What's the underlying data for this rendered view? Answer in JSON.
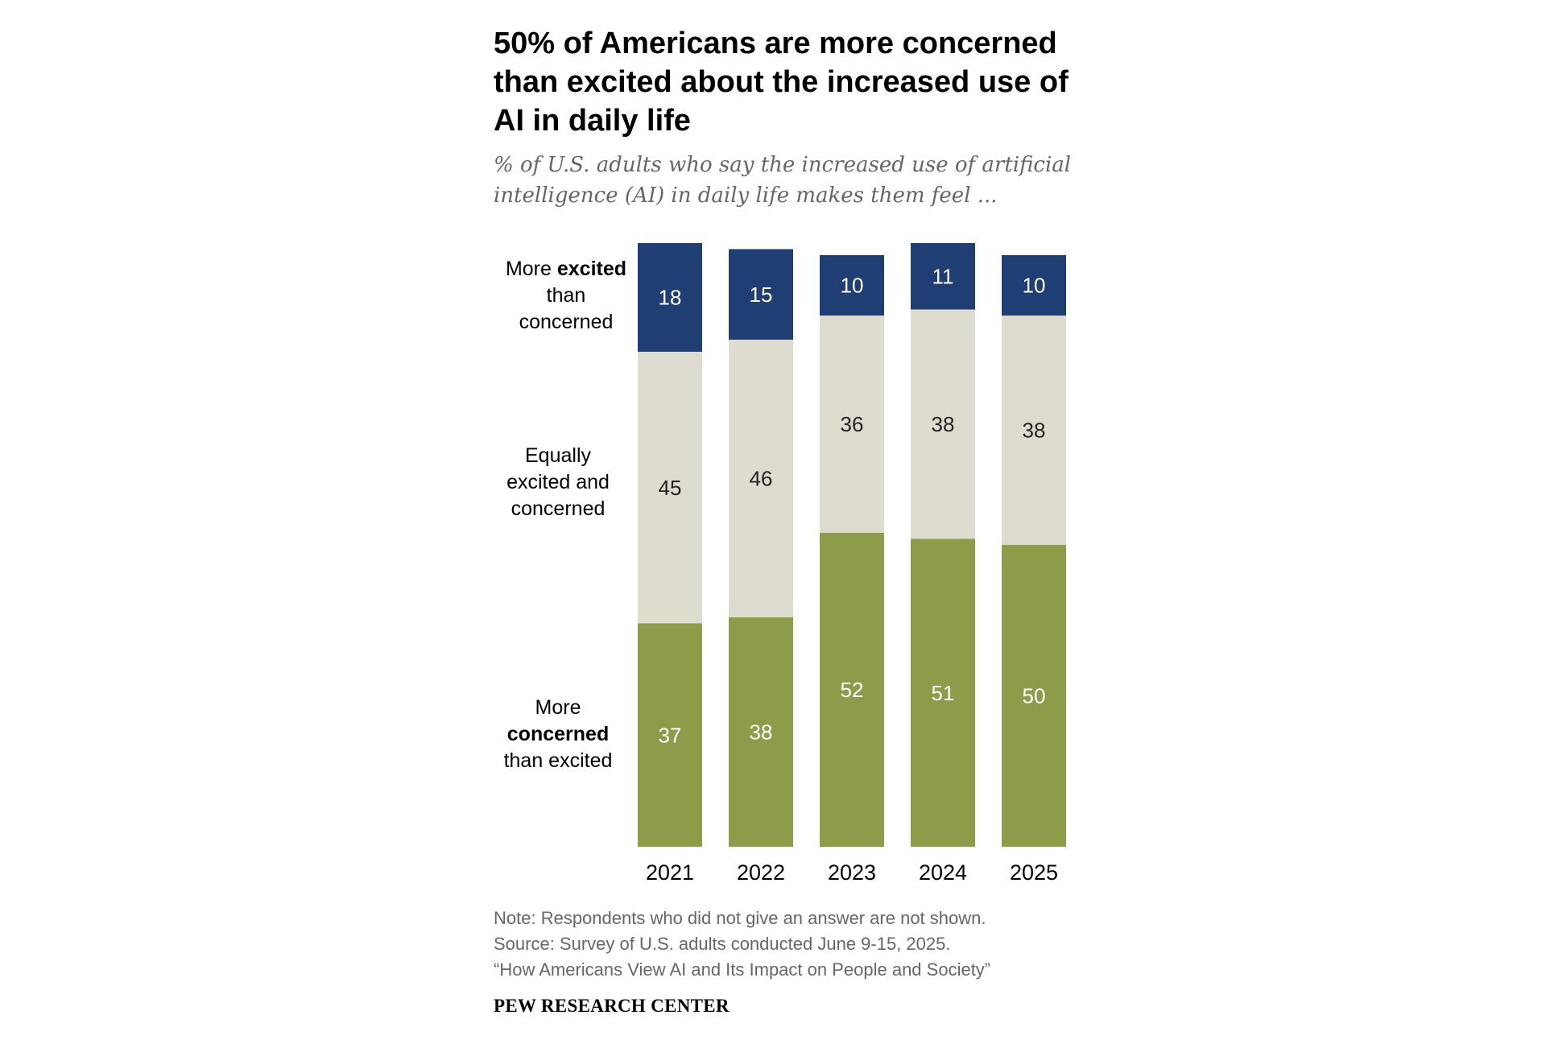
{
  "colors": {
    "excited": "#1f3e73",
    "equal": "#dedbcf",
    "concerned": "#8c9c48",
    "label_light": "#ffffff",
    "label_dark": "#222222"
  },
  "legend": {
    "excited": {
      "pre": "More ",
      "bold": "excited",
      "post": "than concerned"
    },
    "equal": {
      "text": "Equally excited and concerned"
    },
    "concerned": {
      "pre": "More",
      "bold": "concerned",
      "post": "than excited"
    }
  },
  "chart_data": {
    "type": "bar",
    "stacked": true,
    "title": "50% of Americans are more concerned than excited about the increased use of AI in daily life",
    "subtitle": "% of U.S. adults who say the increased use of artificial intelligence (AI) in daily life makes them feel ...",
    "categories": [
      "2021",
      "2022",
      "2023",
      "2024",
      "2025"
    ],
    "series": [
      {
        "key": "concerned",
        "name": "More concerned than excited",
        "values": [
          37,
          38,
          52,
          51,
          50
        ]
      },
      {
        "key": "equal",
        "name": "Equally excited and concerned",
        "values": [
          45,
          46,
          36,
          38,
          38
        ]
      },
      {
        "key": "excited",
        "name": "More excited than concerned",
        "values": [
          18,
          15,
          10,
          11,
          10
        ]
      }
    ],
    "ylim": [
      0,
      100
    ],
    "xlabel": "",
    "ylabel": "",
    "grid": false,
    "legend_position": "left"
  },
  "notes": {
    "note": "Note: Respondents who did not give an answer are not shown.",
    "source": "Source: Survey of U.S. adults conducted June 9-15, 2025.",
    "report": "“How Americans View AI and Its Impact on People and Society”"
  },
  "brand": "PEW RESEARCH CENTER"
}
